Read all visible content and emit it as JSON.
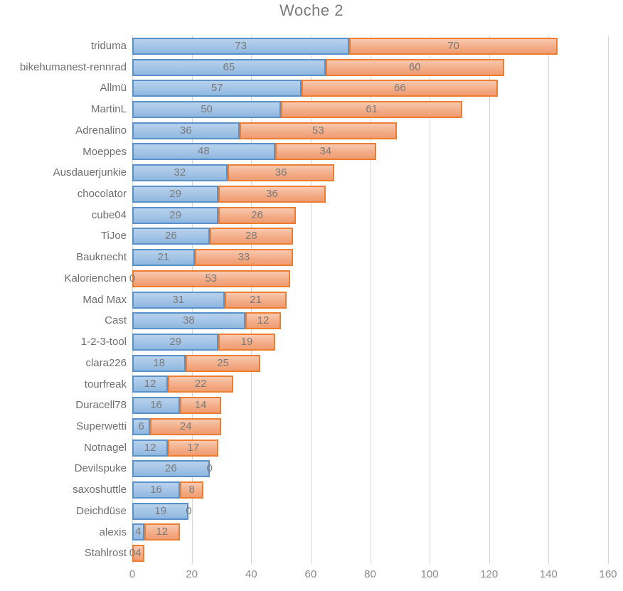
{
  "title": "Woche 2",
  "chart_data": {
    "type": "bar",
    "orientation": "horizontal",
    "stacked": true,
    "title": "Woche 2",
    "xlabel": "",
    "ylabel": "",
    "xlim": [
      0,
      160
    ],
    "x_ticks": [
      0,
      20,
      40,
      60,
      80,
      100,
      120,
      140,
      160
    ],
    "grid": true,
    "legend": "none",
    "show_data_labels": true,
    "categories": [
      "triduma",
      "bikehumanest-rennrad",
      "Allmü",
      "MartinL",
      "Adrenalino",
      "Moeppes",
      "Ausdauerjunkie",
      "chocolator",
      "cube04",
      "TiJoe",
      "Bauknecht",
      "Kalorienchen",
      "Mad Max",
      "Cast",
      "1-2-3-tool",
      "clara226",
      "tourfreak",
      "Duracell78",
      "Superwetti",
      "Notnagel",
      "Devilspuke",
      "saxoshuttle",
      "Deichdüse",
      "alexis",
      "Stahlrost"
    ],
    "series": [
      {
        "name": "blue-series",
        "fill_top": "#b7d1ec",
        "fill_bottom": "#8fb7df",
        "border_color": "#5992cb",
        "values": [
          73,
          65,
          57,
          50,
          36,
          48,
          32,
          29,
          29,
          26,
          21,
          0,
          31,
          38,
          29,
          18,
          12,
          16,
          6,
          12,
          26,
          16,
          19,
          4,
          0
        ]
      },
      {
        "name": "orange-series",
        "fill_top": "#f8c9b0",
        "fill_bottom": "#f09c70",
        "border_color": "#ed7d31",
        "values": [
          70,
          60,
          66,
          61,
          53,
          34,
          36,
          36,
          26,
          28,
          33,
          53,
          21,
          12,
          19,
          25,
          22,
          14,
          24,
          17,
          0,
          8,
          0,
          12,
          4
        ]
      }
    ]
  },
  "colors": {
    "title_text": "#7b7b7b",
    "category_text": "#6f6f6f",
    "tick_text": "#8b8b8b",
    "data_label_text": "#7a7a7a",
    "gridline": "#d8d8d8"
  }
}
